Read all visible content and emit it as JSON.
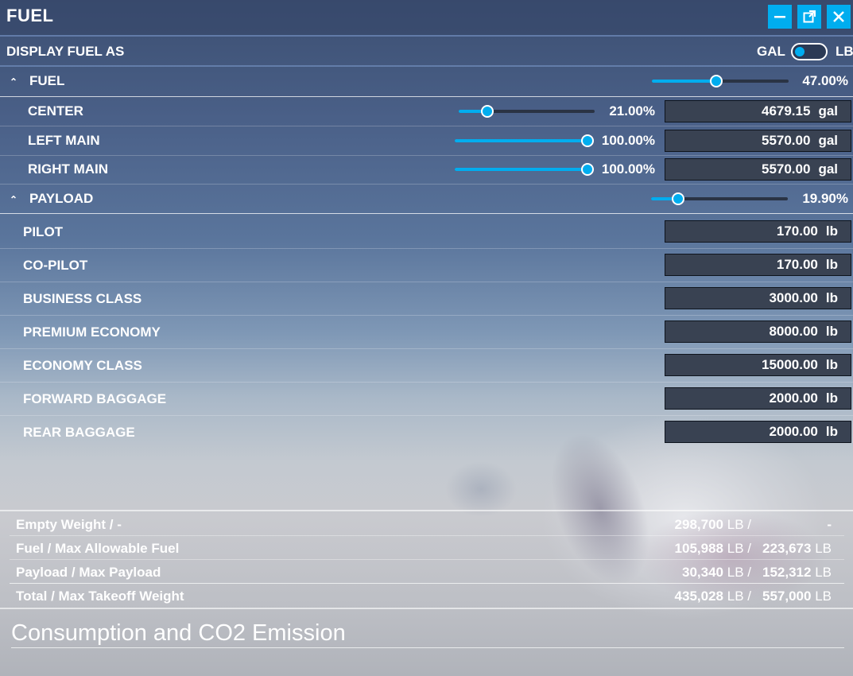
{
  "window": {
    "title": "FUEL",
    "buttons": {
      "minimize": "—",
      "popout": "⧉",
      "close": "✕"
    },
    "accent_color": "#00adef"
  },
  "display": {
    "label": "DISPLAY FUEL AS",
    "option_left": "GAL",
    "option_right": "LB",
    "selected": "GAL"
  },
  "fuel": {
    "section_label": "FUEL",
    "total_percent_label": "47.00%",
    "total_percent": 47.0,
    "tanks": [
      {
        "name": "CENTER",
        "percent_label": "21.00%",
        "percent": 21.0,
        "value": "4679.15",
        "unit": "gal"
      },
      {
        "name": "LEFT MAIN",
        "percent_label": "100.00%",
        "percent": 100.0,
        "value": "5570.00",
        "unit": "gal"
      },
      {
        "name": "RIGHT MAIN",
        "percent_label": "100.00%",
        "percent": 100.0,
        "value": "5570.00",
        "unit": "gal"
      }
    ]
  },
  "payload": {
    "section_label": "PAYLOAD",
    "total_percent_label": "19.90%",
    "total_percent": 19.9,
    "stations": [
      {
        "name": "PILOT",
        "value": "170.00",
        "unit": "lb"
      },
      {
        "name": "CO-PILOT",
        "value": "170.00",
        "unit": "lb"
      },
      {
        "name": "BUSINESS CLASS",
        "value": "3000.00",
        "unit": "lb"
      },
      {
        "name": "PREMIUM ECONOMY",
        "value": "8000.00",
        "unit": "lb"
      },
      {
        "name": "ECONOMY CLASS",
        "value": "15000.00",
        "unit": "lb"
      },
      {
        "name": "FORWARD BAGGAGE",
        "value": "2000.00",
        "unit": "lb"
      },
      {
        "name": "REAR BAGGAGE",
        "value": "2000.00",
        "unit": "lb"
      }
    ]
  },
  "summary": [
    {
      "label": "Empty Weight / -",
      "value": "298,700",
      "unit": "LB",
      "slash": "/",
      "max": "-",
      "max_unit": ""
    },
    {
      "label": "Fuel / Max Allowable Fuel",
      "value": "105,988",
      "unit": "LB",
      "slash": "/",
      "max": "223,673",
      "max_unit": "LB"
    },
    {
      "label": "Payload / Max Payload",
      "value": "30,340",
      "unit": "LB",
      "slash": "/",
      "max": "152,312",
      "max_unit": "LB"
    },
    {
      "label": "Total / Max Takeoff Weight",
      "value": "435,028",
      "unit": "LB",
      "slash": "/",
      "max": "557,000",
      "max_unit": "LB"
    }
  ],
  "consumption_title": "Consumption and CO2 Emission"
}
